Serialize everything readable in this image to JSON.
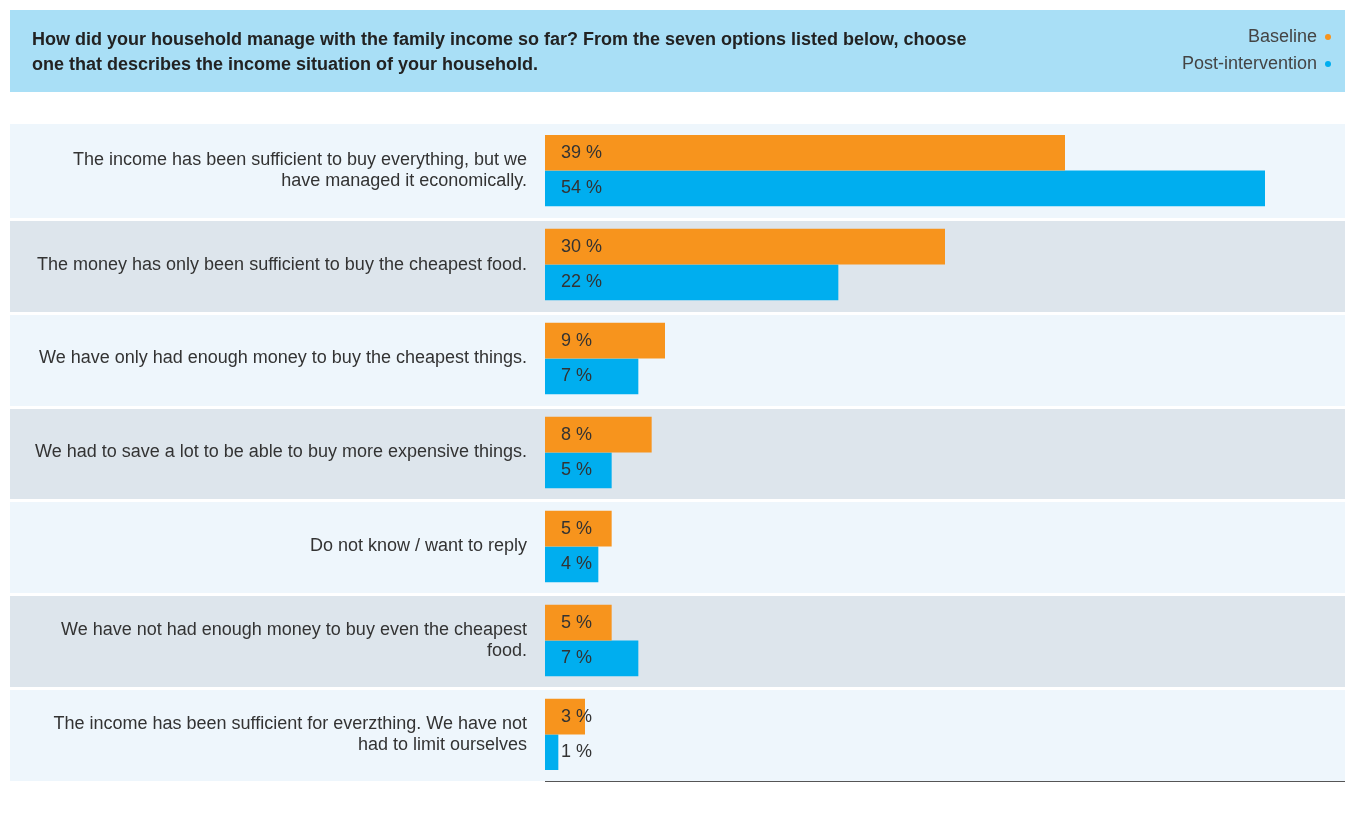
{
  "chart_data": {
    "type": "bar",
    "orientation": "horizontal",
    "title": "How did your household manage with the family income so far? From the seven options listed below, choose one that describes the income situation of your household.",
    "categories": [
      "The income has been sufficient to buy everything, but we have managed it economically.",
      "The money has only been sufficient to buy the cheapest food.",
      "We have only had enough money to buy the cheapest things.",
      "We had to save a lot to be able to buy more expensive things.",
      "Do not know / want to reply",
      "We have not had enough money to buy even the cheapest food.",
      "The income has been sufficient for everzthing. We have not had to limit ourselves"
    ],
    "series": [
      {
        "name": "Baseline",
        "color": "#f7941d",
        "values": [
          39,
          30,
          9,
          8,
          5,
          5,
          3
        ],
        "value_labels": [
          "39 %",
          "30 %",
          "9 %",
          "8 %",
          "5 %",
          "5 %",
          "3 %"
        ]
      },
      {
        "name": "Post-intervention",
        "color": "#00aeef",
        "values": [
          54,
          22,
          7,
          5,
          4,
          7,
          1
        ],
        "value_labels": [
          "54 %",
          "22 %",
          "7 %",
          "5 %",
          "4 %",
          "7 %",
          "1 %"
        ]
      }
    ],
    "tick_labels": "y",
    "legend": "top right"
  }
}
